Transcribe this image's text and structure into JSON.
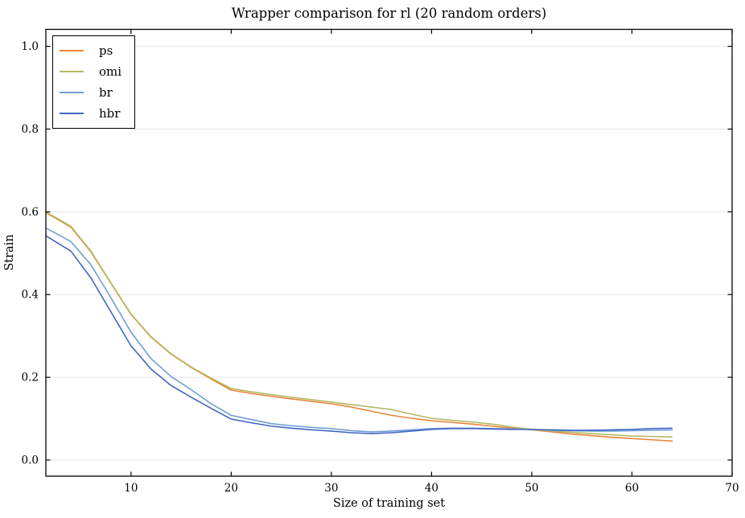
{
  "chart_data": {
    "type": "line",
    "title": "Wrapper comparison for rl (20 random orders)",
    "xlabel": "Size of training set",
    "ylabel": "Strain",
    "xlim": [
      1.5,
      70
    ],
    "ylim": [
      -0.039,
      1.041
    ],
    "xticks": [
      10,
      20,
      30,
      40,
      50,
      60,
      70
    ],
    "yticks": [
      0.0,
      0.2,
      0.4,
      0.6,
      0.8,
      1.0
    ],
    "grid": "horizontal-only",
    "legend_position": "upper-left",
    "x": [
      1.5,
      4,
      6,
      8,
      10,
      12,
      14,
      16,
      18,
      20,
      22,
      24,
      26,
      28,
      30,
      32,
      34,
      36,
      38,
      40,
      42,
      44,
      46,
      48,
      50,
      52,
      54,
      56,
      58,
      60,
      62,
      64
    ],
    "series": [
      {
        "name": "ps",
        "color": "#e8853c",
        "values": [
          0.598,
          0.563,
          0.503,
          0.427,
          0.352,
          0.297,
          0.256,
          0.224,
          0.196,
          0.169,
          0.161,
          0.154,
          0.148,
          0.142,
          0.136,
          0.128,
          0.118,
          0.108,
          0.101,
          0.095,
          0.091,
          0.087,
          0.082,
          0.077,
          0.073,
          0.068,
          0.063,
          0.059,
          0.055,
          0.052,
          0.049,
          0.046
        ]
      },
      {
        "name": "omi",
        "color": "#b5b963",
        "values": [
          0.6,
          0.565,
          0.505,
          0.428,
          0.353,
          0.298,
          0.257,
          0.225,
          0.198,
          0.173,
          0.165,
          0.158,
          0.152,
          0.146,
          0.14,
          0.134,
          0.128,
          0.122,
          0.111,
          0.101,
          0.096,
          0.092,
          0.087,
          0.08,
          0.074,
          0.07,
          0.067,
          0.064,
          0.061,
          0.058,
          0.057,
          0.056
        ]
      },
      {
        "name": "br",
        "color": "#6d9ed6",
        "values": [
          0.561,
          0.528,
          0.472,
          0.392,
          0.309,
          0.245,
          0.202,
          0.17,
          0.136,
          0.108,
          0.098,
          0.088,
          0.083,
          0.079,
          0.076,
          0.071,
          0.068,
          0.07,
          0.073,
          0.076,
          0.077,
          0.077,
          0.076,
          0.075,
          0.074,
          0.072,
          0.071,
          0.07,
          0.07,
          0.071,
          0.072,
          0.073
        ]
      },
      {
        "name": "hbr",
        "color": "#4165c0",
        "values": [
          0.542,
          0.505,
          0.44,
          0.358,
          0.276,
          0.22,
          0.18,
          0.152,
          0.125,
          0.099,
          0.09,
          0.082,
          0.077,
          0.073,
          0.07,
          0.066,
          0.064,
          0.066,
          0.07,
          0.074,
          0.076,
          0.076,
          0.075,
          0.074,
          0.074,
          0.073,
          0.072,
          0.072,
          0.073,
          0.074,
          0.076,
          0.077
        ]
      }
    ],
    "colors": {
      "grid": "#e7e7e7",
      "axis": "#000000",
      "text": "#000000",
      "background": "#ffffff"
    }
  }
}
